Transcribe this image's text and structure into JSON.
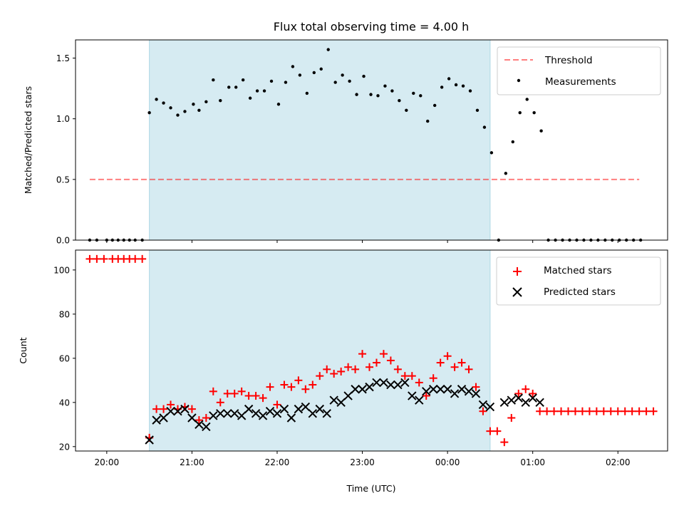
{
  "chart_data": {
    "title": "Flux total observing time = 4.00 h",
    "colors": {
      "shade": "#add8e6",
      "threshold": "#ff0000",
      "matched": "#ff0000",
      "predicted": "#000000",
      "measurements": "#000000"
    },
    "shade": {
      "start": "20:30",
      "end": "00:30"
    },
    "x_axis": {
      "label": "Time (UTC)",
      "ticks": [
        "20:00",
        "21:00",
        "22:00",
        "23:00",
        "00:00",
        "01:00",
        "02:00"
      ],
      "range": [
        "19:38",
        "02:35"
      ]
    },
    "top": {
      "type": "scatter",
      "ylabel": "Matched/Predicted stars",
      "ylim": [
        0,
        1.65
      ],
      "yticks": [
        "0.0",
        "0.5",
        "1.0",
        "1.5"
      ],
      "threshold": {
        "name": "Threshold",
        "value": 0.5,
        "x_start": "19:48",
        "x_end": "02:15"
      },
      "measurements_name": "Measurements",
      "measurements": [
        [
          "19:48",
          0
        ],
        [
          "19:53",
          0
        ],
        [
          "20:00",
          0
        ],
        [
          "20:04",
          0
        ],
        [
          "20:08",
          0
        ],
        [
          "20:12",
          0
        ],
        [
          "20:16",
          0
        ],
        [
          "20:20",
          0
        ],
        [
          "20:25",
          0
        ],
        [
          "20:30",
          1.05
        ],
        [
          "20:35",
          1.16
        ],
        [
          "20:40",
          1.13
        ],
        [
          "20:45",
          1.09
        ],
        [
          "20:50",
          1.03
        ],
        [
          "20:55",
          1.06
        ],
        [
          "21:01",
          1.12
        ],
        [
          "21:05",
          1.07
        ],
        [
          "21:10",
          1.14
        ],
        [
          "21:15",
          1.32
        ],
        [
          "21:20",
          1.15
        ],
        [
          "21:26",
          1.26
        ],
        [
          "21:31",
          1.26
        ],
        [
          "21:36",
          1.32
        ],
        [
          "21:41",
          1.17
        ],
        [
          "21:46",
          1.23
        ],
        [
          "21:51",
          1.23
        ],
        [
          "21:56",
          1.31
        ],
        [
          "22:01",
          1.12
        ],
        [
          "22:06",
          1.3
        ],
        [
          "22:11",
          1.43
        ],
        [
          "22:16",
          1.36
        ],
        [
          "22:21",
          1.21
        ],
        [
          "22:26",
          1.38
        ],
        [
          "22:31",
          1.41
        ],
        [
          "22:36",
          1.57
        ],
        [
          "22:41",
          1.3
        ],
        [
          "22:46",
          1.36
        ],
        [
          "22:51",
          1.31
        ],
        [
          "22:56",
          1.2
        ],
        [
          "23:01",
          1.35
        ],
        [
          "23:06",
          1.2
        ],
        [
          "23:11",
          1.19
        ],
        [
          "23:16",
          1.27
        ],
        [
          "23:21",
          1.23
        ],
        [
          "23:26",
          1.15
        ],
        [
          "23:31",
          1.07
        ],
        [
          "23:36",
          1.21
        ],
        [
          "23:41",
          1.19
        ],
        [
          "23:46",
          0.98
        ],
        [
          "23:51",
          1.11
        ],
        [
          "23:56",
          1.26
        ],
        [
          "00:01",
          1.33
        ],
        [
          "00:06",
          1.28
        ],
        [
          "00:11",
          1.27
        ],
        [
          "00:16",
          1.23
        ],
        [
          "00:21",
          1.07
        ],
        [
          "00:26",
          0.93
        ],
        [
          "00:31",
          0.72
        ],
        [
          "00:36",
          0
        ],
        [
          "00:41",
          0.55
        ],
        [
          "00:46",
          0.81
        ],
        [
          "00:51",
          1.05
        ],
        [
          "00:56",
          1.16
        ],
        [
          "01:01",
          1.05
        ],
        [
          "01:06",
          0.9
        ],
        [
          "01:11",
          0
        ],
        [
          "01:16",
          0
        ],
        [
          "01:21",
          0
        ],
        [
          "01:26",
          0
        ],
        [
          "01:31",
          0
        ],
        [
          "01:36",
          0
        ],
        [
          "01:41",
          0
        ],
        [
          "01:46",
          0
        ],
        [
          "01:51",
          0
        ],
        [
          "01:56",
          0
        ],
        [
          "02:01",
          0
        ],
        [
          "02:06",
          0
        ],
        [
          "02:11",
          0
        ],
        [
          "02:16",
          0
        ]
      ]
    },
    "bottom": {
      "type": "scatter",
      "ylabel": "Count",
      "ylim": [
        18,
        109
      ],
      "yticks": [
        "20",
        "40",
        "60",
        "80",
        "100"
      ],
      "series": [
        {
          "name": "Matched stars",
          "marker": "+",
          "points": [
            [
              "19:48",
              105
            ],
            [
              "19:53",
              105
            ],
            [
              "19:58",
              105
            ],
            [
              "20:04",
              105
            ],
            [
              "20:08",
              105
            ],
            [
              "20:12",
              105
            ],
            [
              "20:16",
              105
            ],
            [
              "20:20",
              105
            ],
            [
              "20:25",
              105
            ],
            [
              "20:30",
              24
            ],
            [
              "20:35",
              37
            ],
            [
              "20:40",
              37
            ],
            [
              "20:45",
              39
            ],
            [
              "20:50",
              37
            ],
            [
              "20:55",
              38
            ],
            [
              "21:00",
              37
            ],
            [
              "21:05",
              32
            ],
            [
              "21:10",
              33
            ],
            [
              "21:15",
              45
            ],
            [
              "21:20",
              40
            ],
            [
              "21:25",
              44
            ],
            [
              "21:30",
              44
            ],
            [
              "21:35",
              45
            ],
            [
              "21:40",
              43
            ],
            [
              "21:45",
              43
            ],
            [
              "21:50",
              42
            ],
            [
              "21:55",
              47
            ],
            [
              "22:00",
              39
            ],
            [
              "22:05",
              48
            ],
            [
              "22:10",
              47
            ],
            [
              "22:15",
              50
            ],
            [
              "22:20",
              46
            ],
            [
              "22:25",
              48
            ],
            [
              "22:30",
              52
            ],
            [
              "22:35",
              55
            ],
            [
              "22:40",
              53
            ],
            [
              "22:45",
              54
            ],
            [
              "22:50",
              56
            ],
            [
              "22:55",
              55
            ],
            [
              "23:00",
              62
            ],
            [
              "23:05",
              56
            ],
            [
              "23:10",
              58
            ],
            [
              "23:15",
              62
            ],
            [
              "23:20",
              59
            ],
            [
              "23:25",
              55
            ],
            [
              "23:30",
              52
            ],
            [
              "23:35",
              52
            ],
            [
              "23:40",
              49
            ],
            [
              "23:45",
              43
            ],
            [
              "23:50",
              51
            ],
            [
              "23:55",
              58
            ],
            [
              "00:00",
              61
            ],
            [
              "00:05",
              56
            ],
            [
              "00:10",
              58
            ],
            [
              "00:15",
              55
            ],
            [
              "00:20",
              47
            ],
            [
              "00:25",
              36
            ],
            [
              "00:30",
              27
            ],
            [
              "00:35",
              27
            ],
            [
              "00:40",
              22
            ],
            [
              "00:45",
              33
            ],
            [
              "00:50",
              44
            ],
            [
              "00:55",
              46
            ],
            [
              "01:00",
              44
            ],
            [
              "01:05",
              36
            ],
            [
              "01:10",
              36
            ],
            [
              "01:15",
              36
            ],
            [
              "01:20",
              36
            ],
            [
              "01:25",
              36
            ],
            [
              "01:30",
              36
            ],
            [
              "01:35",
              36
            ],
            [
              "01:40",
              36
            ],
            [
              "01:45",
              36
            ],
            [
              "01:50",
              36
            ],
            [
              "01:55",
              36
            ],
            [
              "02:00",
              36
            ],
            [
              "02:05",
              36
            ],
            [
              "02:10",
              36
            ],
            [
              "02:15",
              36
            ],
            [
              "02:20",
              36
            ],
            [
              "02:25",
              36
            ]
          ]
        },
        {
          "name": "Predicted stars",
          "marker": "x",
          "points": [
            [
              "20:30",
              23
            ],
            [
              "20:35",
              32
            ],
            [
              "20:40",
              33
            ],
            [
              "20:45",
              36
            ],
            [
              "20:50",
              36
            ],
            [
              "20:55",
              37
            ],
            [
              "21:00",
              33
            ],
            [
              "21:05",
              30
            ],
            [
              "21:10",
              29
            ],
            [
              "21:15",
              34
            ],
            [
              "21:20",
              35
            ],
            [
              "21:25",
              35
            ],
            [
              "21:30",
              35
            ],
            [
              "21:35",
              34
            ],
            [
              "21:40",
              37
            ],
            [
              "21:45",
              35
            ],
            [
              "21:50",
              34
            ],
            [
              "21:55",
              36
            ],
            [
              "22:00",
              35
            ],
            [
              "22:05",
              37
            ],
            [
              "22:10",
              33
            ],
            [
              "22:15",
              37
            ],
            [
              "22:20",
              38
            ],
            [
              "22:25",
              35
            ],
            [
              "22:30",
              37
            ],
            [
              "22:35",
              35
            ],
            [
              "22:40",
              41
            ],
            [
              "22:45",
              40
            ],
            [
              "22:50",
              43
            ],
            [
              "22:55",
              46
            ],
            [
              "23:00",
              46
            ],
            [
              "23:05",
              47
            ],
            [
              "23:10",
              49
            ],
            [
              "23:15",
              49
            ],
            [
              "23:20",
              48
            ],
            [
              "23:25",
              48
            ],
            [
              "23:30",
              49
            ],
            [
              "23:35",
              43
            ],
            [
              "23:40",
              41
            ],
            [
              "23:45",
              45
            ],
            [
              "23:50",
              46
            ],
            [
              "23:55",
              46
            ],
            [
              "00:00",
              46
            ],
            [
              "00:05",
              44
            ],
            [
              "00:10",
              46
            ],
            [
              "00:15",
              45
            ],
            [
              "00:20",
              44
            ],
            [
              "00:25",
              39
            ],
            [
              "00:30",
              38
            ],
            [
              "00:35",
              null
            ],
            [
              "00:40",
              40
            ],
            [
              "00:45",
              41
            ],
            [
              "00:50",
              42
            ],
            [
              "00:55",
              40
            ],
            [
              "01:00",
              42
            ],
            [
              "01:05",
              40
            ]
          ]
        }
      ]
    }
  }
}
